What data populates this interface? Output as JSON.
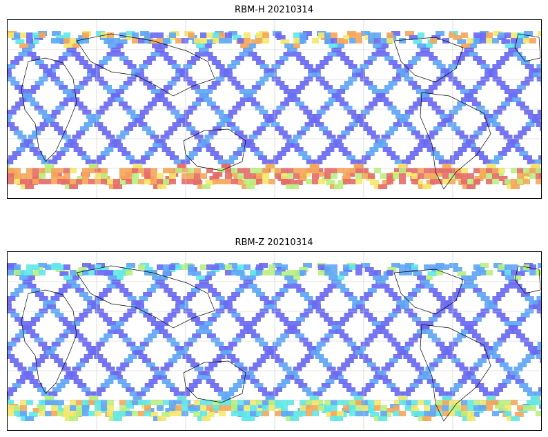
{
  "panels": [
    {
      "title": "RBM-H 20210314",
      "south_band_intensity": "high",
      "north_band_intensity": "medium",
      "seed": 11
    },
    {
      "title": "RBM-Z 20210314",
      "south_band_intensity": "medium",
      "north_band_intensity": "low",
      "seed": 23
    }
  ],
  "colors": {
    "low": "#6a6af2",
    "low2": "#5fa6f5",
    "mid": "#5fe8e8",
    "mid2": "#b8f080",
    "high": "#f5e86a",
    "high2": "#f5a65a",
    "max": "#e56a6a",
    "coast": "#000000",
    "grid": "#c8c8c8"
  }
}
